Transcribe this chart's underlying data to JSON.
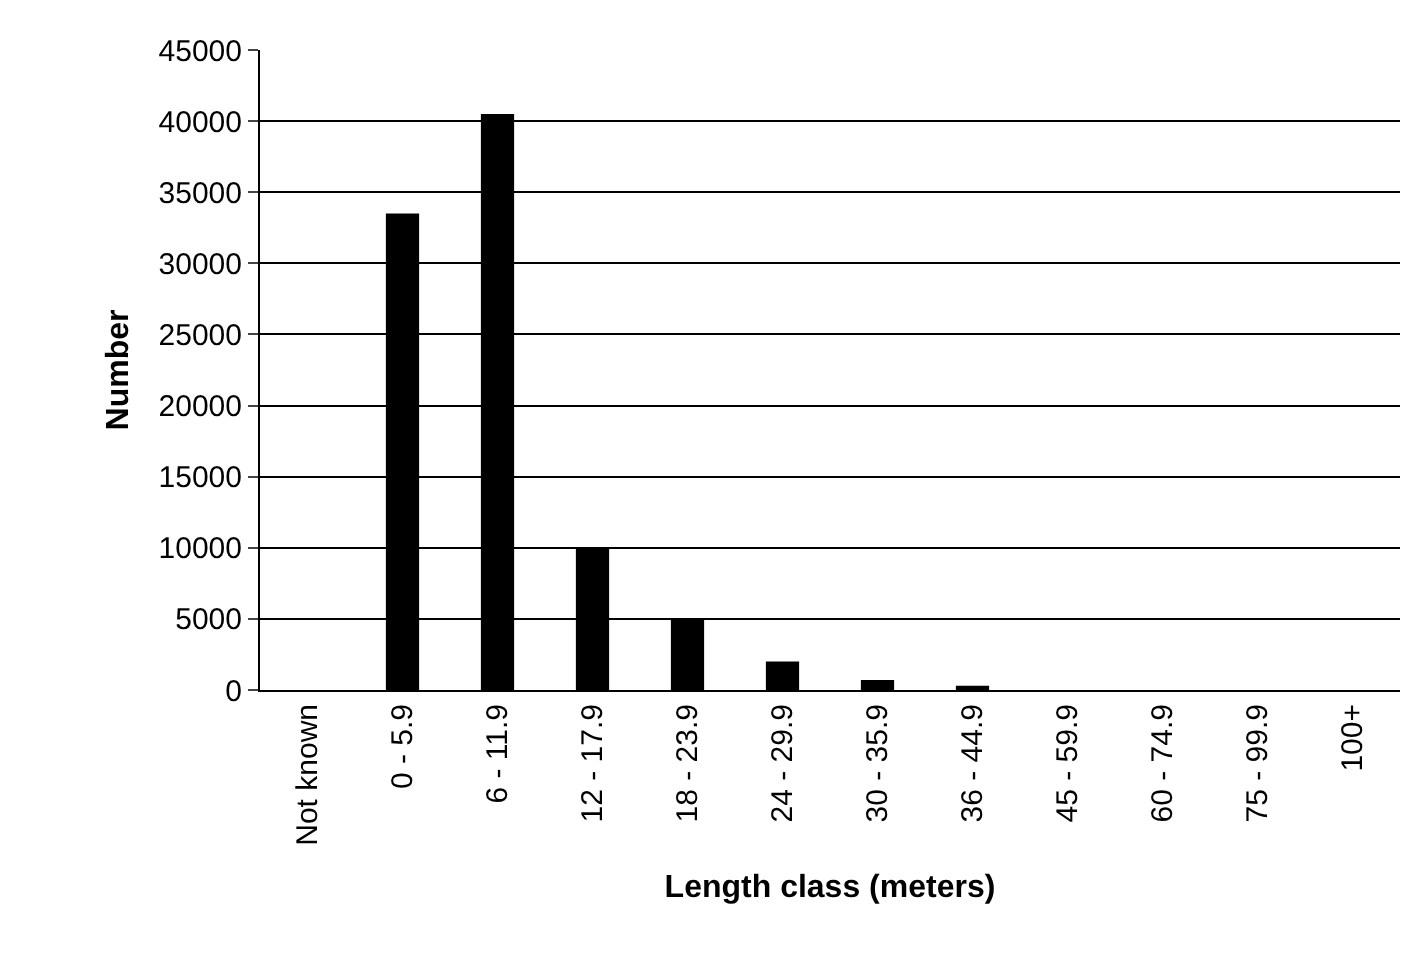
{
  "chart_data": {
    "type": "bar",
    "xlabel": "Length class (meters)",
    "ylabel": "Number",
    "categories": [
      "Not known",
      "0 - 5.9",
      "6 - 11.9",
      "12 - 17.9",
      "18 - 23.9",
      "24 - 29.9",
      "30 - 35.9",
      "36 - 44.9",
      "45 - 59.9",
      "60 - 74.9",
      "75 - 99.9",
      "100+"
    ],
    "values": [
      0,
      33500,
      40500,
      10000,
      5000,
      2000,
      700,
      300,
      null,
      null,
      null,
      0
    ],
    "color": "#000000",
    "ylim": [
      0,
      45000
    ],
    "yticks": [
      0,
      5000,
      10000,
      15000,
      20000,
      25000,
      30000,
      35000,
      40000,
      45000
    ],
    "grid": "y"
  }
}
